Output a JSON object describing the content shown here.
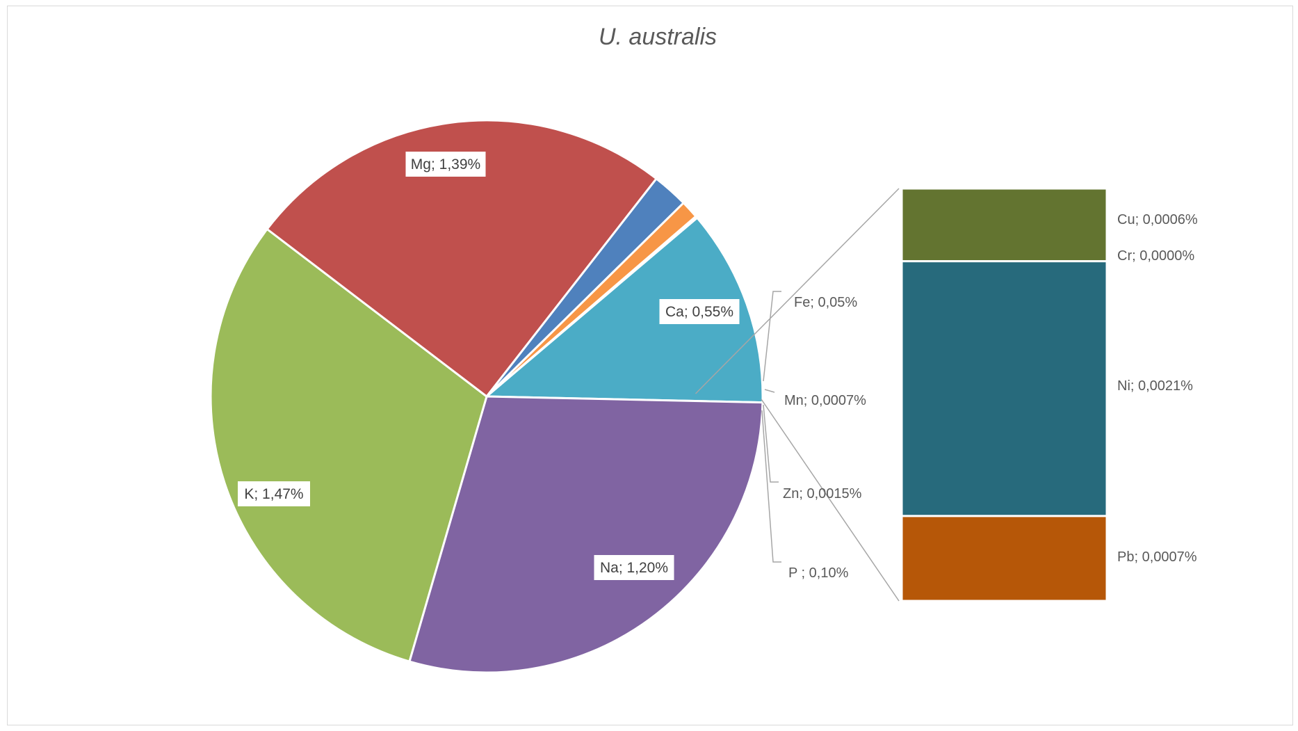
{
  "chart_data": {
    "type": "pie",
    "subtype": "bar-of-pie",
    "title": "U. australis",
    "label_separator": "; ",
    "pie_slices": [
      {
        "name": "Ca",
        "value": 0.55,
        "label": "0,55%",
        "color": "#4BACC6"
      },
      {
        "name": "Mg",
        "value": 1.39,
        "label": "1,39%",
        "color": "#8064A2"
      },
      {
        "name": "K",
        "value": 1.47,
        "label": "1,47%",
        "color": "#9BBB59"
      },
      {
        "name": "Na",
        "value": 1.2,
        "label": "1,20%",
        "color": "#C0504D"
      },
      {
        "name": "P ",
        "value": 0.1,
        "label": "0,10%",
        "color": "#4F81BD"
      },
      {
        "name": "Fe",
        "value": 0.05,
        "label": "0,05%",
        "color": "#F79646"
      }
    ],
    "small_items_outside": [
      {
        "name": "Mn",
        "value": 0.0007,
        "label": "0,0007%"
      },
      {
        "name": "Zn",
        "value": 0.0015,
        "label": "0,0015%"
      }
    ],
    "bar_segments": [
      {
        "name": "Cu",
        "value": 0.0006,
        "label": "0,0006%",
        "color": "#637430"
      },
      {
        "name": "Cr",
        "value": 0.0,
        "label": "0,0000%",
        "color": "#276A7C"
      },
      {
        "name": "Ni",
        "value": 0.0021,
        "label": "0,0021%",
        "color": "#276A7C"
      },
      {
        "name": "Pb",
        "value": 0.0007,
        "label": "0,0007%",
        "color": "#B65708"
      }
    ],
    "legend": "none"
  }
}
